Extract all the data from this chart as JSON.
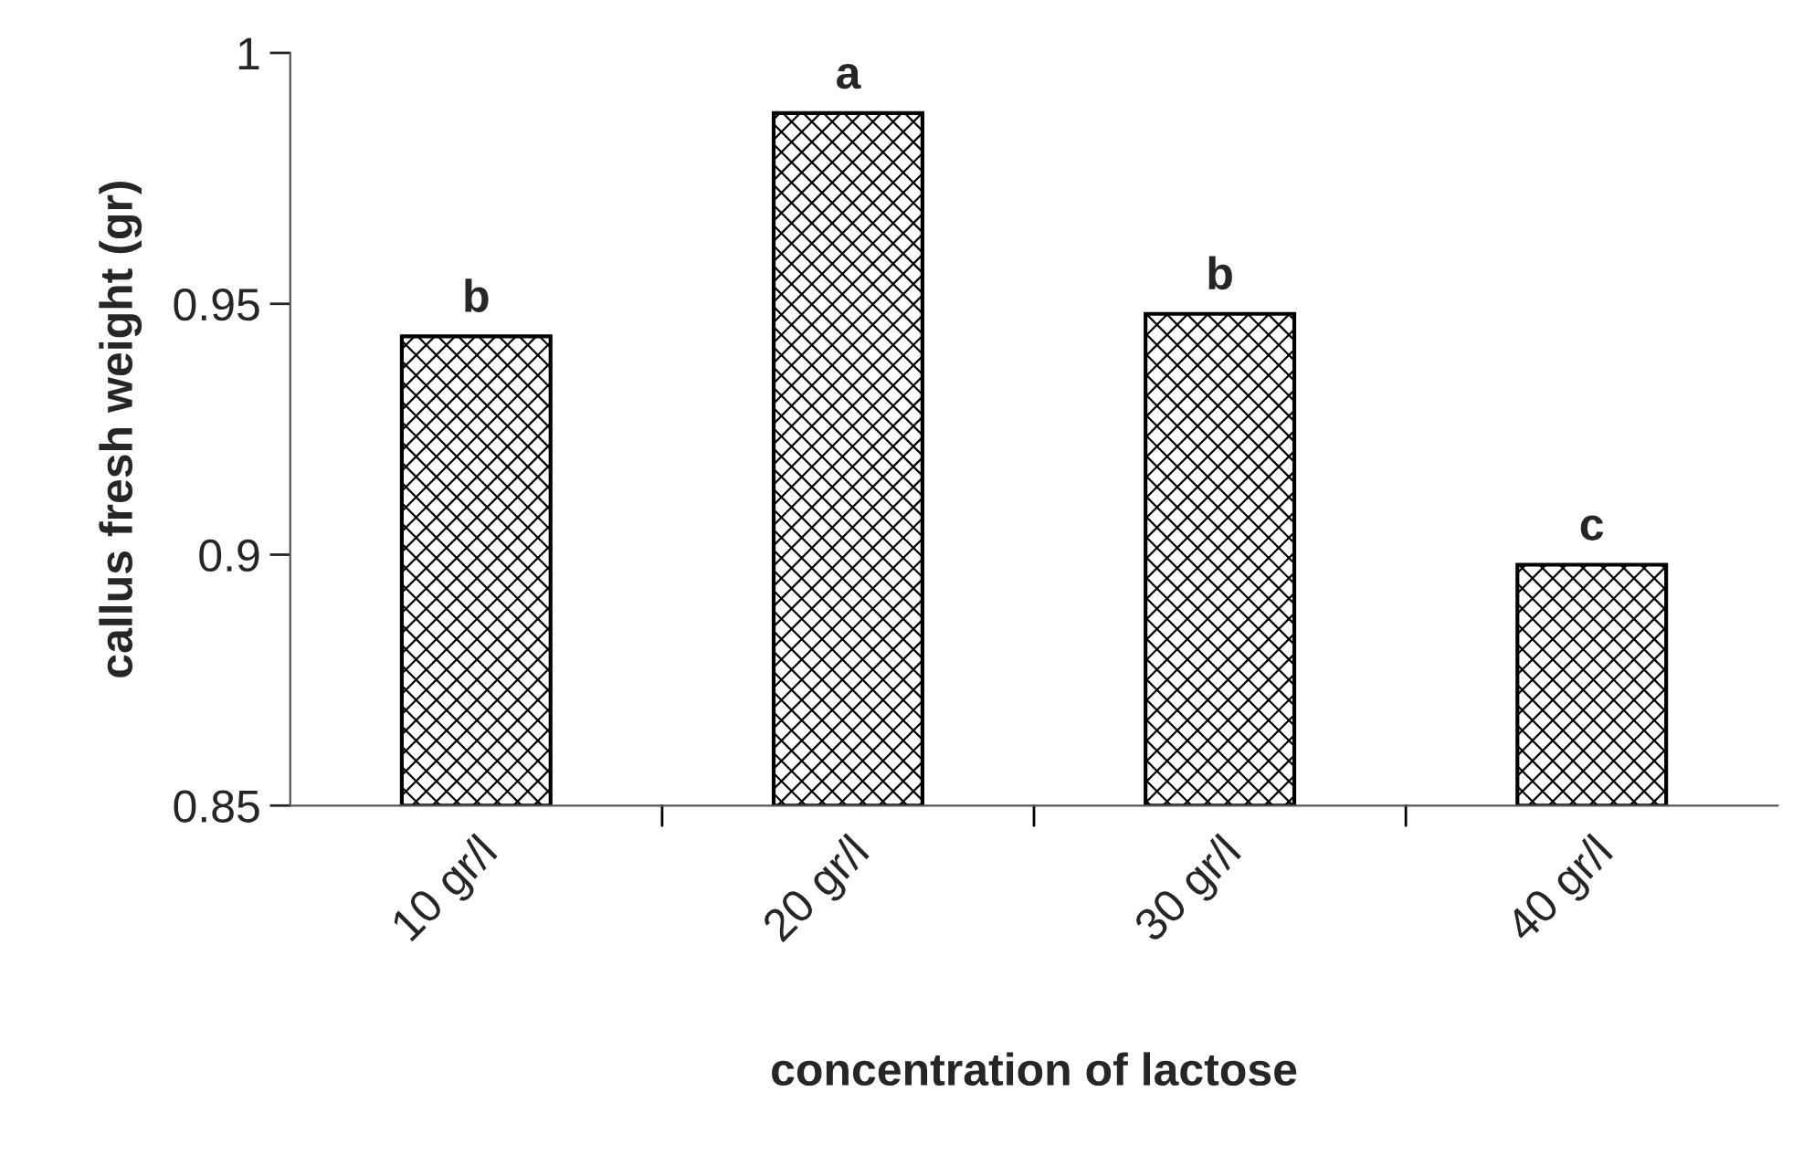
{
  "chart_data": {
    "type": "bar",
    "xlabel": "concentration of lactose",
    "ylabel": "callus fresh weight (gr)",
    "categories": [
      "10 gr/l",
      "20 gr/l",
      "30 gr/l",
      "40 gr/l"
    ],
    "values": [
      0.9435,
      0.988,
      0.948,
      0.898
    ],
    "color": "#000000",
    "ylim": [
      0.85,
      1
    ],
    "yticks": [
      0.85,
      0.9,
      0.95,
      1
    ],
    "grid": false,
    "legend": false,
    "annotations": [
      {
        "text": "b",
        "x": "10 gr/l",
        "y": 0.9435
      },
      {
        "text": "a",
        "x": "20 gr/l",
        "y": 0.988
      },
      {
        "text": "b",
        "x": "30 gr/l",
        "y": 0.948
      },
      {
        "text": "c",
        "x": "40 gr/l",
        "y": 0.898
      }
    ]
  }
}
